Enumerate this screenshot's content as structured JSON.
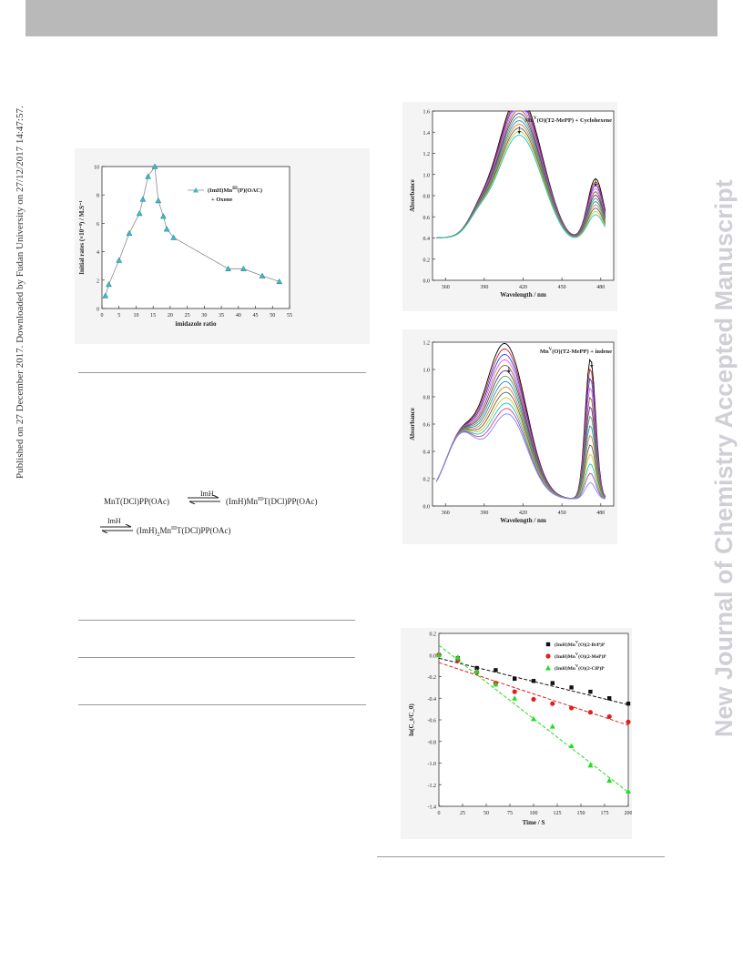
{
  "side_left_text": "Published on 27 December 2017. Downloaded by Fudan University on 27/12/2017 14:47:57.",
  "side_right_text": "New Journal of Chemistry Accepted Manuscript",
  "equation": {
    "line1_left": "MnT(DCl)PP(OAc)",
    "arrow1_label": "ImH",
    "line1_right": "(ImH)Mn",
    "line1_right_sup": "III",
    "line1_right_rest": "T(DCl)PP(OAc)",
    "arrow2_label": "ImH",
    "line2_right": "(ImH)",
    "line2_sub": "2",
    "line2_mid": "Mn",
    "line2_sup": "III",
    "line2_rest": "T(DCl)PP(OAc)"
  },
  "chart_data": [
    {
      "type": "line",
      "ylabel": "Initial rates (×10⁻⁸) / M.S⁻¹",
      "xlabel": "imidazole ratio",
      "legend": [
        "(ImH)Mn",
        "III",
        "(P)(OAC)",
        "+ Oxone"
      ],
      "xlim": [
        0,
        55
      ],
      "ylim": [
        0,
        10
      ],
      "xticks": [
        "0",
        "5",
        "10",
        "15",
        "20",
        "25",
        "30",
        "35",
        "40",
        "45",
        "50",
        "55"
      ],
      "yticks": [
        "0",
        "2",
        "4",
        "6",
        "8",
        "10"
      ],
      "series": [
        {
          "x": [
            1,
            2,
            5,
            8,
            11,
            12,
            13.5,
            15.5,
            16.5,
            18,
            19,
            21,
            37,
            41.5,
            47,
            52
          ],
          "y": [
            0.9,
            1.7,
            3.4,
            5.3,
            6.7,
            7.7,
            9.3,
            10,
            7.6,
            6.5,
            5.6,
            5.0,
            2.8,
            2.8,
            2.3,
            1.9
          ]
        }
      ]
    },
    {
      "type": "line",
      "title": [
        "Mn",
        "V",
        "(O)(T2-MePP) + Cyclohexene"
      ],
      "ylabel": "Absorbance",
      "xlabel": "Wavelength / nm",
      "xlim": [
        350,
        490
      ],
      "ylim": [
        0,
        1.6
      ],
      "xticks": [
        "360",
        "390",
        "420",
        "450",
        "480"
      ],
      "yticks": [
        "0.0",
        "0.2",
        "0.4",
        "0.6",
        "0.8",
        "1.0",
        "1.2",
        "1.4",
        "1.6"
      ],
      "curve_count": 12,
      "soret_peak_range": [
        0.98,
        1.36
      ],
      "q_peak_range": [
        0.22,
        0.56
      ]
    },
    {
      "type": "line",
      "title": [
        "Mn",
        "V",
        "(O)(T2-MePP) + indene"
      ],
      "ylabel": "Absorbance",
      "xlabel": "Wavelength / nm",
      "xlim": [
        350,
        490
      ],
      "ylim": [
        0,
        1.2
      ],
      "xticks": [
        "360",
        "390",
        "420",
        "450",
        "480"
      ],
      "yticks": [
        "0.0",
        "0.2",
        "0.4",
        "0.6",
        "0.8",
        "1.0",
        "1.2"
      ],
      "curve_count": 14,
      "soret_peak_range": [
        0.62,
        1.06
      ],
      "q_peak_range": [
        0.12,
        1.03
      ]
    },
    {
      "type": "scatter",
      "ylabel": "ln(C_t/C_0)",
      "xlabel": "Time / S",
      "xlim": [
        0,
        200
      ],
      "ylim": [
        -1.4,
        0.2
      ],
      "xticks": [
        "0",
        "25",
        "50",
        "75",
        "100",
        "125",
        "150",
        "175",
        "200"
      ],
      "yticks": [
        "-1.4",
        "-1.2",
        "-1.0",
        "-0.8",
        "-0.6",
        "-0.4",
        "-0.2",
        "0.0",
        "0.2"
      ],
      "series": [
        {
          "name": "(ImH)Mn V (O)(2-BrP)P",
          "color": "#111111",
          "x": [
            0,
            20,
            40,
            60,
            80,
            100,
            120,
            140,
            160,
            180,
            200
          ],
          "y": [
            0.0,
            -0.03,
            -0.12,
            -0.14,
            -0.22,
            -0.24,
            -0.26,
            -0.3,
            -0.34,
            -0.4,
            -0.45
          ],
          "fit": [
            -0.03,
            -0.46
          ]
        },
        {
          "name": "(ImH)Mn V (O)(2-MeP)P",
          "color": "#e02020",
          "x": [
            0,
            20,
            40,
            60,
            80,
            100,
            120,
            140,
            160,
            180,
            200
          ],
          "y": [
            0.0,
            -0.05,
            -0.16,
            -0.26,
            -0.34,
            -0.41,
            -0.45,
            -0.49,
            -0.53,
            -0.57,
            -0.62
          ],
          "fit": [
            -0.07,
            -0.65
          ]
        },
        {
          "name": "(ImH)Mn V (O)(2-ClP)P",
          "color": "#22dd22",
          "x": [
            0,
            20,
            40,
            60,
            80,
            100,
            120,
            140,
            160,
            180,
            200
          ],
          "y": [
            0.0,
            -0.02,
            -0.15,
            -0.27,
            -0.4,
            -0.59,
            -0.66,
            -0.84,
            -1.02,
            -1.16,
            -1.26
          ],
          "fit": [
            0.09,
            -1.27
          ]
        }
      ],
      "legend_labels": [
        [
          "(ImH)Mn",
          "V",
          "(O)(2-BrP)P"
        ],
        [
          "(ImH)Mn",
          "V",
          "(O)(2-MeP)P"
        ],
        [
          "(ImH)Mn",
          "V",
          "(O)(2-ClP)P"
        ]
      ]
    }
  ]
}
